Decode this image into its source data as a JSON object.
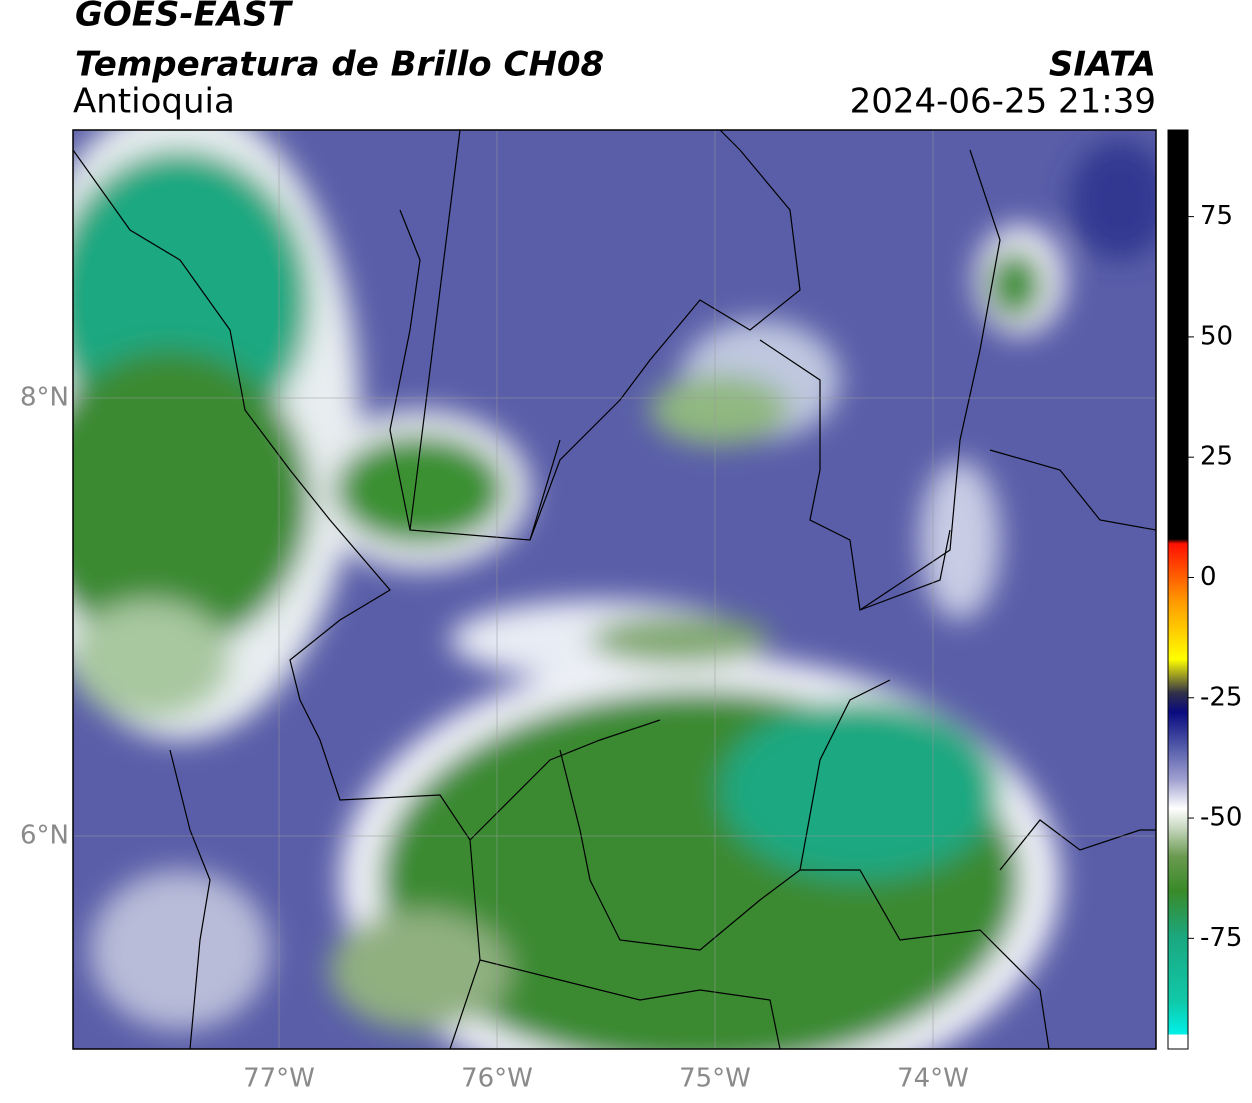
{
  "header": {
    "satellite": "GOES-EAST",
    "product": "Temperatura de Brillo CH08",
    "region": "Antioquia",
    "source": "SIATA",
    "timestamp": "2024-06-25 21:39"
  },
  "map": {
    "xlim": [
      -77.945,
      -72.977
    ],
    "ylim": [
      5.027,
      9.224
    ],
    "xticks": [
      {
        "value": -77,
        "label": "77°W"
      },
      {
        "value": -76,
        "label": "76°W"
      },
      {
        "value": -75,
        "label": "75°W"
      },
      {
        "value": -74,
        "label": "74°W"
      }
    ],
    "yticks": [
      {
        "value": 8,
        "label": "8°N"
      },
      {
        "value": 6,
        "label": "6°N"
      }
    ],
    "grid": true
  },
  "colorbar": {
    "lim": [
      -98,
      93
    ],
    "ticks": [
      75,
      50,
      25,
      0,
      -25,
      -50,
      -75
    ],
    "stops": [
      {
        "value": -98,
        "color": "#ffffff"
      },
      {
        "value": -95,
        "color": "#ffffff"
      },
      {
        "value": -95,
        "color": "#00f0e8"
      },
      {
        "value": -88,
        "color": "#10c8a8"
      },
      {
        "value": -75,
        "color": "#1aa880"
      },
      {
        "value": -65,
        "color": "#3a8a28"
      },
      {
        "value": -58,
        "color": "#6a9a50"
      },
      {
        "value": -52,
        "color": "#c8d8c0"
      },
      {
        "value": -48,
        "color": "#ffffff"
      },
      {
        "value": -42,
        "color": "#a0a0d0"
      },
      {
        "value": -35,
        "color": "#5058a8"
      },
      {
        "value": -28,
        "color": "#0a0a80"
      },
      {
        "value": -24,
        "color": "#303048"
      },
      {
        "value": -17,
        "color": "#ffff00"
      },
      {
        "value": -5,
        "color": "#ff9a00"
      },
      {
        "value": 7,
        "color": "#ff1000"
      },
      {
        "value": 8,
        "color": "#000000"
      },
      {
        "value": 93,
        "color": "#000000"
      }
    ]
  }
}
